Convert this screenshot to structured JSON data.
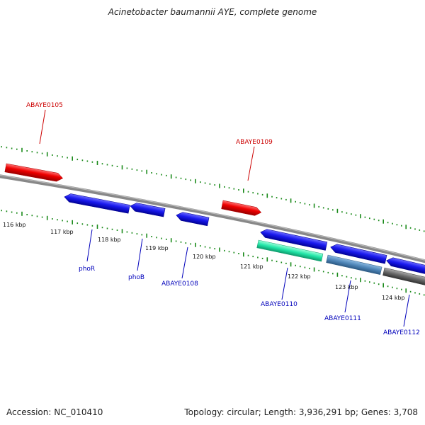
{
  "title": "Acinetobacter baumannii AYE, complete genome",
  "footer": {
    "accession": "Accession: NC_010410",
    "summary": "Topology: circular; Length: 3,936,291 bp; Genes: 3,708"
  },
  "colors": {
    "forward_gene": "#ee0000",
    "reverse_gene": "#1a1aee",
    "rrna_like": "#22e6a8",
    "steel": "#4f86b8",
    "gray_feature": "#666666",
    "backbone": "#888888",
    "tick": "#1a8a1a",
    "forward_label": "#cc0000",
    "reverse_label": "#0000bb"
  },
  "map": {
    "kbp_labels": [
      "116 kbp",
      "117 kbp",
      "118 kbp",
      "119 kbp",
      "120 kbp",
      "121 kbp",
      "122 kbp",
      "123 kbp",
      "124 kbp"
    ],
    "gene_labels": {
      "ABAYE0105": "ABAYE0105",
      "ABAYE0109": "ABAYE0109",
      "phoR": "phoR",
      "phoB": "phoB",
      "ABAYE0108": "ABAYE0108",
      "ABAYE0110": "ABAYE0110",
      "ABAYE0111": "ABAYE0111",
      "ABAYE0112": "ABAYE0112"
    }
  }
}
